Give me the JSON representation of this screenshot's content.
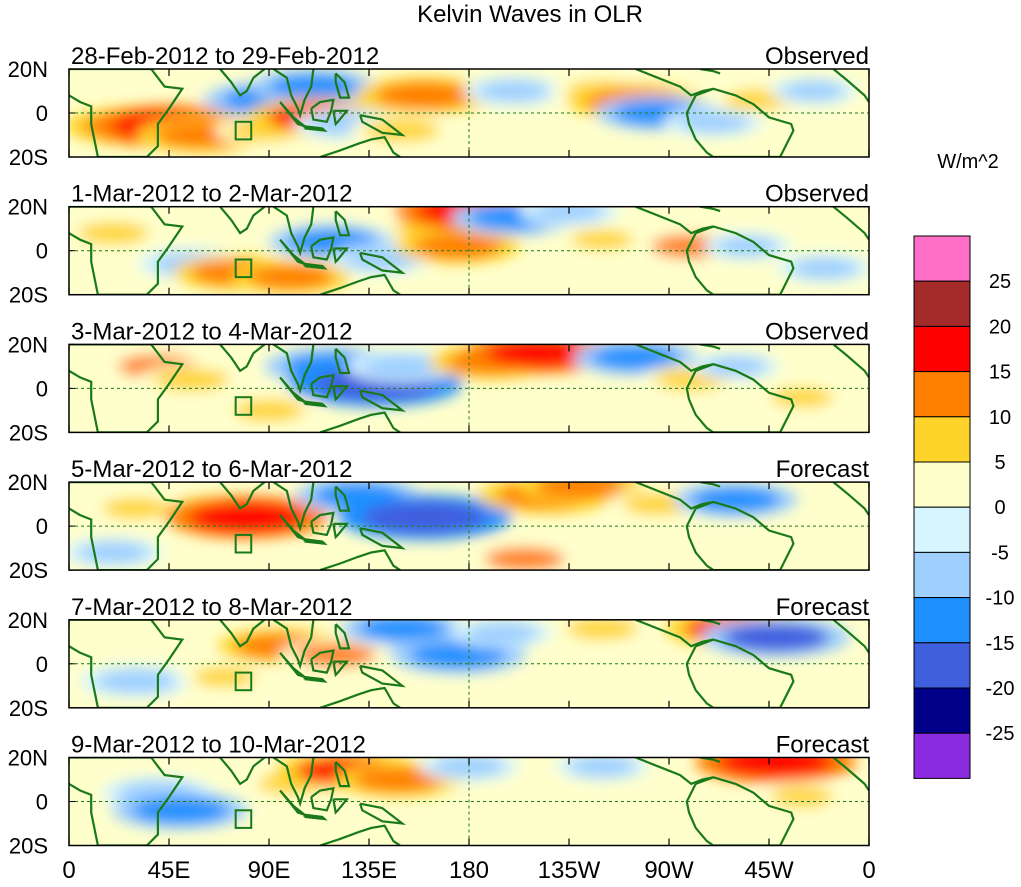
{
  "chart_data": {
    "type": "heatmap",
    "title": "Kelvin Waves in OLR",
    "units": "W/m^2",
    "x_ticks": [
      "0",
      "45E",
      "90E",
      "135E",
      "180",
      "135W",
      "90W",
      "45W",
      "0"
    ],
    "x_tick_values": [
      0,
      45,
      90,
      135,
      180,
      225,
      270,
      315,
      360
    ],
    "y_ticks": [
      "20N",
      "0",
      "20S"
    ],
    "y_tick_values": [
      20,
      0,
      -20
    ],
    "xlim": [
      0,
      360
    ],
    "ylim": [
      -20,
      20
    ],
    "reference_lines": {
      "equator_lat": 0,
      "dateline_lon": 180
    },
    "colorbar": {
      "levels": [
        25,
        20,
        15,
        10,
        5,
        0,
        -5,
        -10,
        -15,
        -20,
        -25
      ],
      "colors": [
        "#ff6ec7",
        "#a52a2a",
        "#ff0000",
        "#ff7f00",
        "#ffd42a",
        "#ffffcc",
        "#d6f5ff",
        "#9ecfff",
        "#1e90ff",
        "#3f5fdf",
        "#00008b",
        "#8a2be2"
      ],
      "level_labels": [
        "25",
        "20",
        "15",
        "10",
        "5",
        "0",
        "-5",
        "-10",
        "-15",
        "-20",
        "-25"
      ]
    },
    "panels": [
      {
        "period": "28-Feb-2012 to 29-Feb-2012",
        "status": "Observed",
        "features": [
          {
            "lon": 30,
            "lat": -6,
            "value": 15
          },
          {
            "lon": 45,
            "lat": -6,
            "value": 18
          },
          {
            "lon": 60,
            "lat": -10,
            "value": 13
          },
          {
            "lon": 88,
            "lat": -8,
            "value": 8
          },
          {
            "lon": 90,
            "lat": 6,
            "value": -13
          },
          {
            "lon": 110,
            "lat": 12,
            "value": -12
          },
          {
            "lon": 112,
            "lat": -2,
            "value": 15
          },
          {
            "lon": 125,
            "lat": -5,
            "value": -9
          },
          {
            "lon": 160,
            "lat": 8,
            "value": 14
          },
          {
            "lon": 150,
            "lat": -8,
            "value": 9
          },
          {
            "lon": 200,
            "lat": 10,
            "value": -8
          },
          {
            "lon": 240,
            "lat": 10,
            "value": 8
          },
          {
            "lon": 255,
            "lat": 5,
            "value": 14
          },
          {
            "lon": 265,
            "lat": 0,
            "value": -12
          },
          {
            "lon": 290,
            "lat": -4,
            "value": -8
          },
          {
            "lon": 310,
            "lat": 6,
            "value": 7
          },
          {
            "lon": 335,
            "lat": 10,
            "value": -6
          }
        ]
      },
      {
        "period": "1-Mar-2012 to 2-Mar-2012",
        "status": "Observed",
        "features": [
          {
            "lon": 20,
            "lat": 8,
            "value": 8
          },
          {
            "lon": 55,
            "lat": -6,
            "value": -9
          },
          {
            "lon": 75,
            "lat": -10,
            "value": 12
          },
          {
            "lon": 100,
            "lat": -12,
            "value": 11
          },
          {
            "lon": 118,
            "lat": 4,
            "value": -12
          },
          {
            "lon": 140,
            "lat": -4,
            "value": -8
          },
          {
            "lon": 162,
            "lat": 10,
            "value": 7
          },
          {
            "lon": 175,
            "lat": 2,
            "value": 12
          },
          {
            "lon": 180,
            "lat": 18,
            "value": 16
          },
          {
            "lon": 200,
            "lat": 15,
            "value": -12
          },
          {
            "lon": 225,
            "lat": 18,
            "value": -8
          },
          {
            "lon": 240,
            "lat": 5,
            "value": 6
          },
          {
            "lon": 280,
            "lat": 2,
            "value": 10
          },
          {
            "lon": 305,
            "lat": 2,
            "value": -6
          },
          {
            "lon": 340,
            "lat": -8,
            "value": -7
          }
        ]
      },
      {
        "period": "3-Mar-2012 to 4-Mar-2012",
        "status": "Observed",
        "features": [
          {
            "lon": 40,
            "lat": 10,
            "value": 10
          },
          {
            "lon": 55,
            "lat": 4,
            "value": 9
          },
          {
            "lon": 90,
            "lat": -10,
            "value": 8
          },
          {
            "lon": 120,
            "lat": 10,
            "value": -15
          },
          {
            "lon": 138,
            "lat": 2,
            "value": -20
          },
          {
            "lon": 150,
            "lat": 10,
            "value": -10
          },
          {
            "lon": 190,
            "lat": 12,
            "value": 12
          },
          {
            "lon": 212,
            "lat": 16,
            "value": 16
          },
          {
            "lon": 255,
            "lat": 14,
            "value": -12
          },
          {
            "lon": 280,
            "lat": 4,
            "value": 8
          },
          {
            "lon": 300,
            "lat": 10,
            "value": -6
          },
          {
            "lon": 330,
            "lat": -4,
            "value": 6
          }
        ]
      },
      {
        "period": "5-Mar-2012 to 6-Mar-2012",
        "status": "Forecast",
        "features": [
          {
            "lon": 30,
            "lat": 8,
            "value": 7
          },
          {
            "lon": 70,
            "lat": 6,
            "value": 12
          },
          {
            "lon": 80,
            "lat": 4,
            "value": 18
          },
          {
            "lon": 130,
            "lat": 14,
            "value": -12
          },
          {
            "lon": 160,
            "lat": 4,
            "value": -20
          },
          {
            "lon": 215,
            "lat": 14,
            "value": 14
          },
          {
            "lon": 230,
            "lat": 18,
            "value": 12
          },
          {
            "lon": 265,
            "lat": 10,
            "value": 8
          },
          {
            "lon": 300,
            "lat": 12,
            "value": -12
          },
          {
            "lon": 20,
            "lat": -12,
            "value": -8
          },
          {
            "lon": 205,
            "lat": -15,
            "value": 10
          }
        ]
      },
      {
        "period": "7-Mar-2012 to 8-Mar-2012",
        "status": "Forecast",
        "features": [
          {
            "lon": 30,
            "lat": -8,
            "value": -10
          },
          {
            "lon": 95,
            "lat": 8,
            "value": 12
          },
          {
            "lon": 120,
            "lat": 4,
            "value": 10
          },
          {
            "lon": 150,
            "lat": 16,
            "value": -12
          },
          {
            "lon": 175,
            "lat": 4,
            "value": -14
          },
          {
            "lon": 195,
            "lat": 14,
            "value": -8
          },
          {
            "lon": 240,
            "lat": 16,
            "value": 8
          },
          {
            "lon": 300,
            "lat": 16,
            "value": 15
          },
          {
            "lon": 318,
            "lat": 12,
            "value": -16
          },
          {
            "lon": 70,
            "lat": -6,
            "value": 6
          }
        ]
      },
      {
        "period": "9-Mar-2012 to 10-Mar-2012",
        "status": "Forecast",
        "features": [
          {
            "lon": 40,
            "lat": 4,
            "value": -10
          },
          {
            "lon": 50,
            "lat": -4,
            "value": -14
          },
          {
            "lon": 100,
            "lat": 8,
            "value": 7
          },
          {
            "lon": 125,
            "lat": 14,
            "value": 15
          },
          {
            "lon": 148,
            "lat": 10,
            "value": 12
          },
          {
            "lon": 180,
            "lat": 16,
            "value": -8
          },
          {
            "lon": 240,
            "lat": 16,
            "value": -7
          },
          {
            "lon": 318,
            "lat": 18,
            "value": 18
          },
          {
            "lon": 330,
            "lat": 2,
            "value": 6
          }
        ]
      }
    ]
  }
}
